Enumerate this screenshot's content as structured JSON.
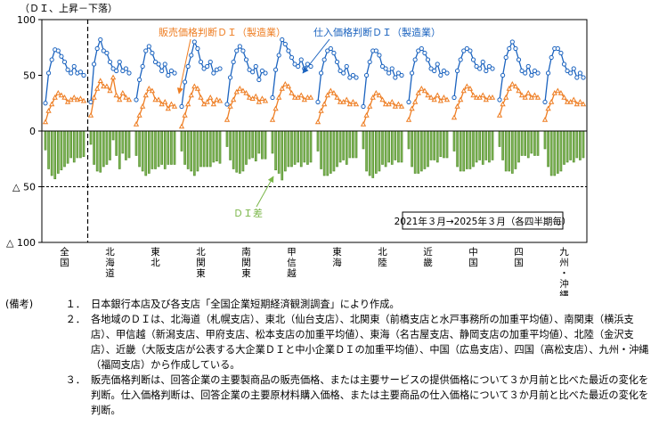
{
  "chart_data": {
    "type": "bar+line",
    "unit_label": "（ＤＩ、上昇－下落）",
    "ylim": [
      -100,
      100
    ],
    "yticks": [
      {
        "value": 100,
        "label": "100"
      },
      {
        "value": 50,
        "label": "50"
      },
      {
        "value": 0,
        "label": "0"
      },
      {
        "value": -50,
        "label": "△ 50"
      },
      {
        "value": -100,
        "label": "△ 100"
      }
    ],
    "period_note": "2021年３月→2025年３月（各四半期毎）",
    "regions": [
      {
        "label": "全国",
        "input": [
          25,
          52,
          64,
          73,
          72,
          67,
          62,
          55,
          52,
          58,
          52,
          53,
          50
        ],
        "output": [
          8,
          18,
          24,
          30,
          34,
          32,
          30,
          26,
          28,
          30,
          28,
          29,
          27
        ]
      },
      {
        "label": "北海道",
        "input": [
          26,
          60,
          74,
          82,
          72,
          70,
          62,
          56,
          54,
          62,
          54,
          56,
          52
        ],
        "output": [
          14,
          30,
          38,
          45,
          40,
          40,
          36,
          48,
          32,
          28,
          34,
          30,
          28
        ]
      },
      {
        "label": "東北",
        "input": [
          28,
          46,
          58,
          72,
          76,
          70,
          62,
          60,
          54,
          60,
          50,
          54,
          52
        ],
        "output": [
          6,
          14,
          22,
          32,
          38,
          36,
          28,
          28,
          24,
          26,
          20,
          24,
          22
        ]
      },
      {
        "label": "北関東",
        "input": [
          22,
          44,
          58,
          68,
          80,
          74,
          62,
          56,
          58,
          62,
          52,
          55,
          56
        ],
        "output": [
          4,
          14,
          24,
          32,
          40,
          38,
          30,
          24,
          26,
          30,
          24,
          28,
          27
        ]
      },
      {
        "label": "南関東",
        "input": [
          24,
          48,
          62,
          72,
          76,
          72,
          64,
          55,
          53,
          58,
          46,
          54,
          52
        ],
        "output": [
          10,
          22,
          28,
          35,
          38,
          36,
          34,
          30,
          29,
          31,
          26,
          29,
          27
        ]
      },
      {
        "label": "甲信越",
        "input": [
          30,
          55,
          68,
          82,
          78,
          72,
          66,
          60,
          58,
          64,
          56,
          60,
          58
        ],
        "output": [
          10,
          20,
          30,
          38,
          42,
          40,
          34,
          30,
          30,
          32,
          28,
          30,
          30
        ]
      },
      {
        "label": "東海",
        "input": [
          26,
          52,
          64,
          72,
          74,
          70,
          62,
          54,
          52,
          58,
          48,
          50,
          48
        ],
        "output": [
          8,
          18,
          24,
          32,
          36,
          34,
          30,
          26,
          26,
          28,
          24,
          26,
          24
        ]
      },
      {
        "label": "北陸",
        "input": [
          22,
          50,
          62,
          72,
          72,
          68,
          58,
          56,
          52,
          56,
          48,
          52,
          50
        ],
        "output": [
          6,
          14,
          22,
          30,
          34,
          32,
          28,
          24,
          24,
          26,
          22,
          24,
          22
        ]
      },
      {
        "label": "近畿",
        "input": [
          26,
          52,
          64,
          72,
          74,
          70,
          64,
          56,
          54,
          60,
          50,
          54,
          52
        ],
        "output": [
          10,
          20,
          26,
          34,
          38,
          36,
          32,
          30,
          28,
          32,
          27,
          30,
          28
        ]
      },
      {
        "label": "中国",
        "input": [
          30,
          54,
          64,
          72,
          74,
          72,
          64,
          58,
          56,
          62,
          54,
          58,
          56
        ],
        "output": [
          12,
          22,
          28,
          36,
          40,
          38,
          32,
          30,
          30,
          32,
          28,
          30,
          30
        ]
      },
      {
        "label": "四国",
        "input": [
          28,
          50,
          66,
          74,
          80,
          74,
          64,
          54,
          52,
          58,
          50,
          54,
          52
        ],
        "output": [
          14,
          24,
          30,
          38,
          42,
          40,
          36,
          32,
          30,
          34,
          30,
          32,
          30
        ]
      },
      {
        "label": "九州・沖縄",
        "input": [
          26,
          52,
          66,
          74,
          74,
          70,
          60,
          54,
          52,
          56,
          48,
          52,
          48
        ],
        "output": [
          10,
          20,
          26,
          34,
          36,
          34,
          30,
          26,
          26,
          28,
          24,
          26,
          24
        ]
      }
    ],
    "series": [
      {
        "key": "output",
        "name": "販売価格判断ＤＩ（製造業）",
        "color": "#ee7d22"
      },
      {
        "key": "input",
        "name": "仕入価格判断ＤＩ（製造業）",
        "color": "#1b63bf"
      },
      {
        "key": "diff",
        "name": "ＤＩ差",
        "color": "#4f8a25"
      }
    ],
    "colors": {
      "input": "#1b63bf",
      "output": "#ee7d22",
      "diff": "#4f8a25",
      "diff_fill": "#7cb356",
      "legend_diff_text": "#7ab648"
    }
  },
  "notes": {
    "lead": "(備考)",
    "items": [
      {
        "num": "１．",
        "text": "日本銀行本店及び各支店「全国企業短期経済観測調査」により作成。"
      },
      {
        "num": "２．",
        "text": "各地域のＤＩは、北海道（札幌支店）、東北（仙台支店）、北関東（前橋支店と水戸事務所の加重平均値）、南関東（横浜支店）、甲信越（新潟支店、甲府支店、松本支店の加重平均値）、東海（名古屋支店、静岡支店の加重平均値）、北陸（金沢支店）、近畿（大阪支店が公表する大企業ＤＩと中小企業ＤＩの加重平均値）、中国（広島支店）、四国（高松支店）、九州・沖縄（福岡支店）から作成している。"
      },
      {
        "num": "３．",
        "text": "販売価格判断は、回答企業の主要製商品の販売価格、または主要サービスの提供価格について３か月前と比べた最近の変化を判断。仕入価格判断は、回答企業の主要原材料購入価格、または主要商品の仕入価格について３か月前と比べた最近の変化を判断。"
      }
    ]
  }
}
